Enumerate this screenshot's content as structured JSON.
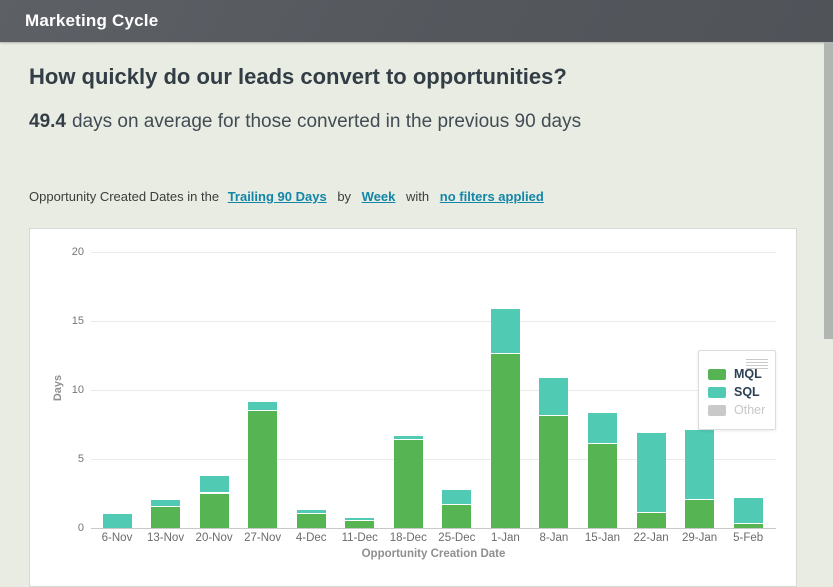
{
  "header": {
    "title": "Marketing Cycle"
  },
  "question": {
    "title": "How quickly do our leads convert to opportunities?",
    "metric_value": "49.4",
    "metric_text": "days on average for those converted in the previous 90 days"
  },
  "filter_bar": {
    "prefix": "Opportunity Created Dates in the",
    "date_range_link": "Trailing 90 Days",
    "by_label": "by",
    "grouping_link": "Week",
    "with_label": "with",
    "filters_link": "no filters applied"
  },
  "chart_data": {
    "type": "bar",
    "stacked": true,
    "xlabel": "Opportunity Creation Date",
    "ylabel": "Days",
    "ylim": [
      0,
      20
    ],
    "yticks": [
      0,
      5,
      10,
      15,
      20
    ],
    "grid": true,
    "legend_position": "inside-right",
    "categories": [
      "6-Nov",
      "13-Nov",
      "20-Nov",
      "27-Nov",
      "4-Dec",
      "11-Dec",
      "18-Dec",
      "25-Dec",
      "1-Jan",
      "8-Jan",
      "15-Jan",
      "22-Jan",
      "29-Jan",
      "5-Feb"
    ],
    "series": [
      {
        "name": "MQL",
        "color": "#57b452",
        "dimmed": false,
        "values": [
          0,
          1.5,
          2.5,
          8.5,
          1.0,
          0.5,
          6.4,
          1.65,
          12.6,
          8.1,
          6.1,
          1.1,
          2.0,
          0.3
        ]
      },
      {
        "name": "SQL",
        "color": "#50cab3",
        "dimmed": false,
        "values": [
          1.0,
          0.55,
          1.3,
          0.6,
          0.3,
          0.25,
          0.25,
          1.1,
          3.3,
          2.8,
          2.25,
          5.8,
          5.1,
          1.85
        ]
      },
      {
        "name": "Other",
        "color": "#c9c9c9",
        "dimmed": true,
        "values": [
          0,
          0,
          0,
          0,
          0,
          0,
          0,
          0,
          0,
          0,
          0,
          0,
          0,
          0
        ]
      }
    ]
  },
  "colors": {
    "header_bg": "#55585d",
    "page_bg": "#e9ece3",
    "link": "#1286a7",
    "mql": "#57b452",
    "sql": "#50cab3",
    "other": "#c9c9c9",
    "separator": "#ffffff"
  }
}
